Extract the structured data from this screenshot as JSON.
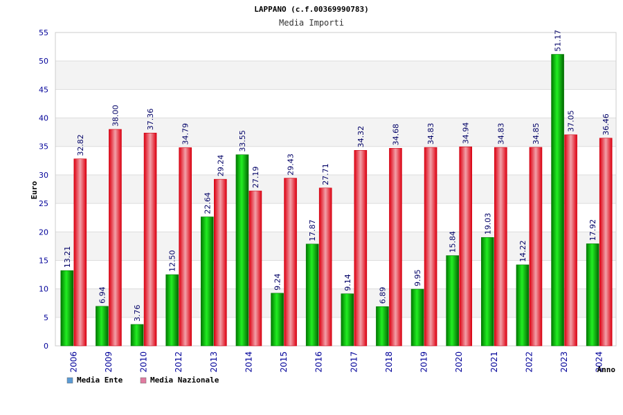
{
  "chart_data": {
    "type": "bar",
    "title": "LAPPANO (c.f.00369990783)",
    "subtitle": "Media Importi",
    "xlabel": "Anno",
    "ylabel": "Euro",
    "ylim": [
      0,
      55
    ],
    "yticks": [
      0,
      5,
      10,
      15,
      20,
      25,
      30,
      35,
      40,
      45,
      50,
      55
    ],
    "grid": true,
    "legend_position": "bottom-left",
    "categories": [
      "2006",
      "2009",
      "2010",
      "2012",
      "2013",
      "2014",
      "2015",
      "2016",
      "2017",
      "2018",
      "2019",
      "2020",
      "2021",
      "2022",
      "2023",
      "2024"
    ],
    "series": [
      {
        "name": "Media Ente",
        "legend_color": "#5b9bd5",
        "bar_color": "#00aa00",
        "values": [
          13.21,
          6.94,
          3.76,
          12.5,
          22.64,
          33.55,
          9.24,
          17.87,
          9.14,
          6.89,
          9.95,
          15.84,
          19.03,
          14.22,
          51.17,
          17.92
        ],
        "labels": [
          "13.21",
          "6.94",
          "3.76",
          "12.50",
          "22.64",
          "33.55",
          "9.24",
          "17.87",
          "9.14",
          "6.89",
          "9.95",
          "15.84",
          "19.03",
          "14.22",
          "51.17",
          "17.92"
        ]
      },
      {
        "name": "Media Nazionale",
        "legend_color": "#e07ba0",
        "bar_color": "#ee1122",
        "values": [
          32.82,
          38.0,
          37.36,
          34.79,
          29.24,
          27.19,
          29.43,
          27.71,
          34.32,
          34.68,
          34.83,
          34.94,
          34.83,
          34.85,
          37.05,
          36.46
        ],
        "labels": [
          "32.82",
          "38.00",
          "37.36",
          "34.79",
          "29.24",
          "27.19",
          "29.43",
          "27.71",
          "34.32",
          "34.68",
          "34.83",
          "34.94",
          "34.83",
          "34.85",
          "37.05",
          "36.46"
        ]
      }
    ]
  }
}
